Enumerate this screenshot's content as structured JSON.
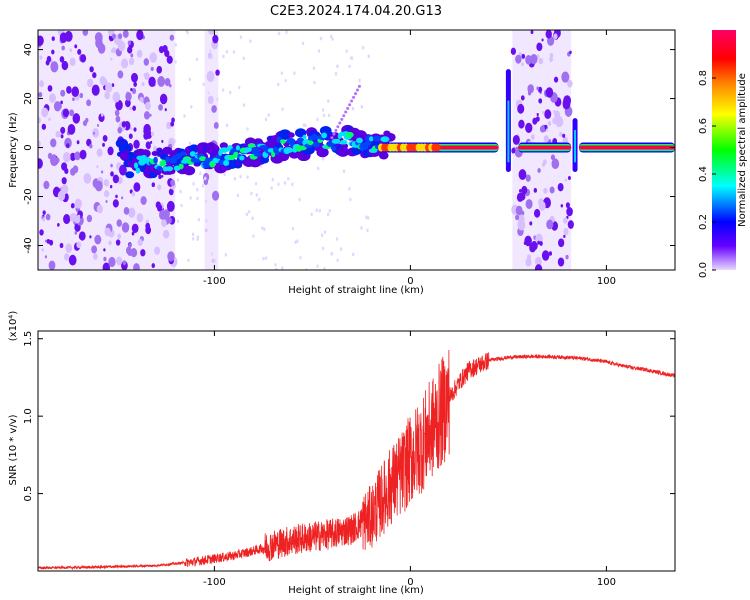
{
  "figure": {
    "title": "C2E3.2024.174.04.20.G13"
  },
  "chart_data": [
    {
      "type": "heatmap",
      "title": "C2E3.2024.174.04.20.G13",
      "xlabel": "Height of straight line (km)",
      "ylabel": "Frequency (Hz)",
      "xlim": [
        -190,
        135
      ],
      "ylim": [
        -50,
        48
      ],
      "x_ticks": [
        -100,
        0,
        100
      ],
      "x_tick_labels": [
        "-100",
        "0",
        "100"
      ],
      "y_ticks": [
        -40,
        -20,
        0,
        20,
        40
      ],
      "y_tick_labels": [
        "-40",
        "-20",
        "0",
        "20",
        "40"
      ],
      "colorbar": {
        "label": "Normalized spectral amplitude",
        "range": [
          0,
          1
        ],
        "ticks": [
          0,
          0.2,
          0.4,
          0.6,
          0.8
        ],
        "tick_labels": [
          "0.0",
          "0.2",
          "0.4",
          "0.6",
          "0.8"
        ],
        "colormap": [
          "#e8d8ff",
          "#6600ff",
          "#0000ff",
          "#00ffff",
          "#00ff00",
          "#ffff00",
          "#ff8000",
          "#ff0000",
          "#ff0066"
        ]
      },
      "features": {
        "trace": [
          {
            "x": -145,
            "f": -8
          },
          {
            "x": -130,
            "f": -6
          },
          {
            "x": -110,
            "f": -5
          },
          {
            "x": -90,
            "f": -3
          },
          {
            "x": -70,
            "f": 0
          },
          {
            "x": -50,
            "f": 2
          },
          {
            "x": -30,
            "f": 3
          },
          {
            "x": -15,
            "f": 1
          },
          {
            "x": 0,
            "f": 0
          },
          {
            "x": 45,
            "f": 0
          },
          {
            "x": 85,
            "f": 0
          },
          {
            "x": 135,
            "f": 0
          }
        ],
        "noise_bands": [
          [
            -190,
            -120
          ],
          [
            -105,
            -98
          ],
          [
            52,
            82
          ]
        ],
        "spikes": [
          {
            "x": 50,
            "fmin": -10,
            "fmax": 32
          },
          {
            "x": 84,
            "fmin": -10,
            "fmax": 12
          }
        ]
      }
    },
    {
      "type": "line",
      "xlabel": "Height of straight line (km)",
      "ylabel": "SNR (10 * v/v)",
      "scale_label": "(x10⁴)",
      "xlim": [
        -190,
        135
      ],
      "ylim": [
        0,
        1.55
      ],
      "x_ticks": [
        -100,
        0,
        100
      ],
      "x_tick_labels": [
        "-100",
        "0",
        "100"
      ],
      "y_ticks": [
        0.5,
        1.0,
        1.5
      ],
      "y_tick_labels": [
        "0.5",
        "1.0",
        "1.5"
      ],
      "series": [
        {
          "color": "#ee2222",
          "x": [
            -190,
            -160,
            -130,
            -110,
            -100,
            -90,
            -80,
            -70,
            -60,
            -50,
            -40,
            -30,
            -20,
            -15,
            -10,
            -5,
            0,
            5,
            10,
            15,
            20,
            25,
            30,
            40,
            50,
            60,
            70,
            80,
            90,
            100,
            110,
            120,
            135
          ],
          "y": [
            0.02,
            0.025,
            0.035,
            0.06,
            0.08,
            0.1,
            0.13,
            0.17,
            0.2,
            0.22,
            0.24,
            0.27,
            0.35,
            0.45,
            0.55,
            0.62,
            0.72,
            0.8,
            0.9,
            1.0,
            1.12,
            1.22,
            1.3,
            1.36,
            1.38,
            1.385,
            1.385,
            1.38,
            1.37,
            1.35,
            1.32,
            1.3,
            1.26
          ]
        }
      ]
    }
  ]
}
